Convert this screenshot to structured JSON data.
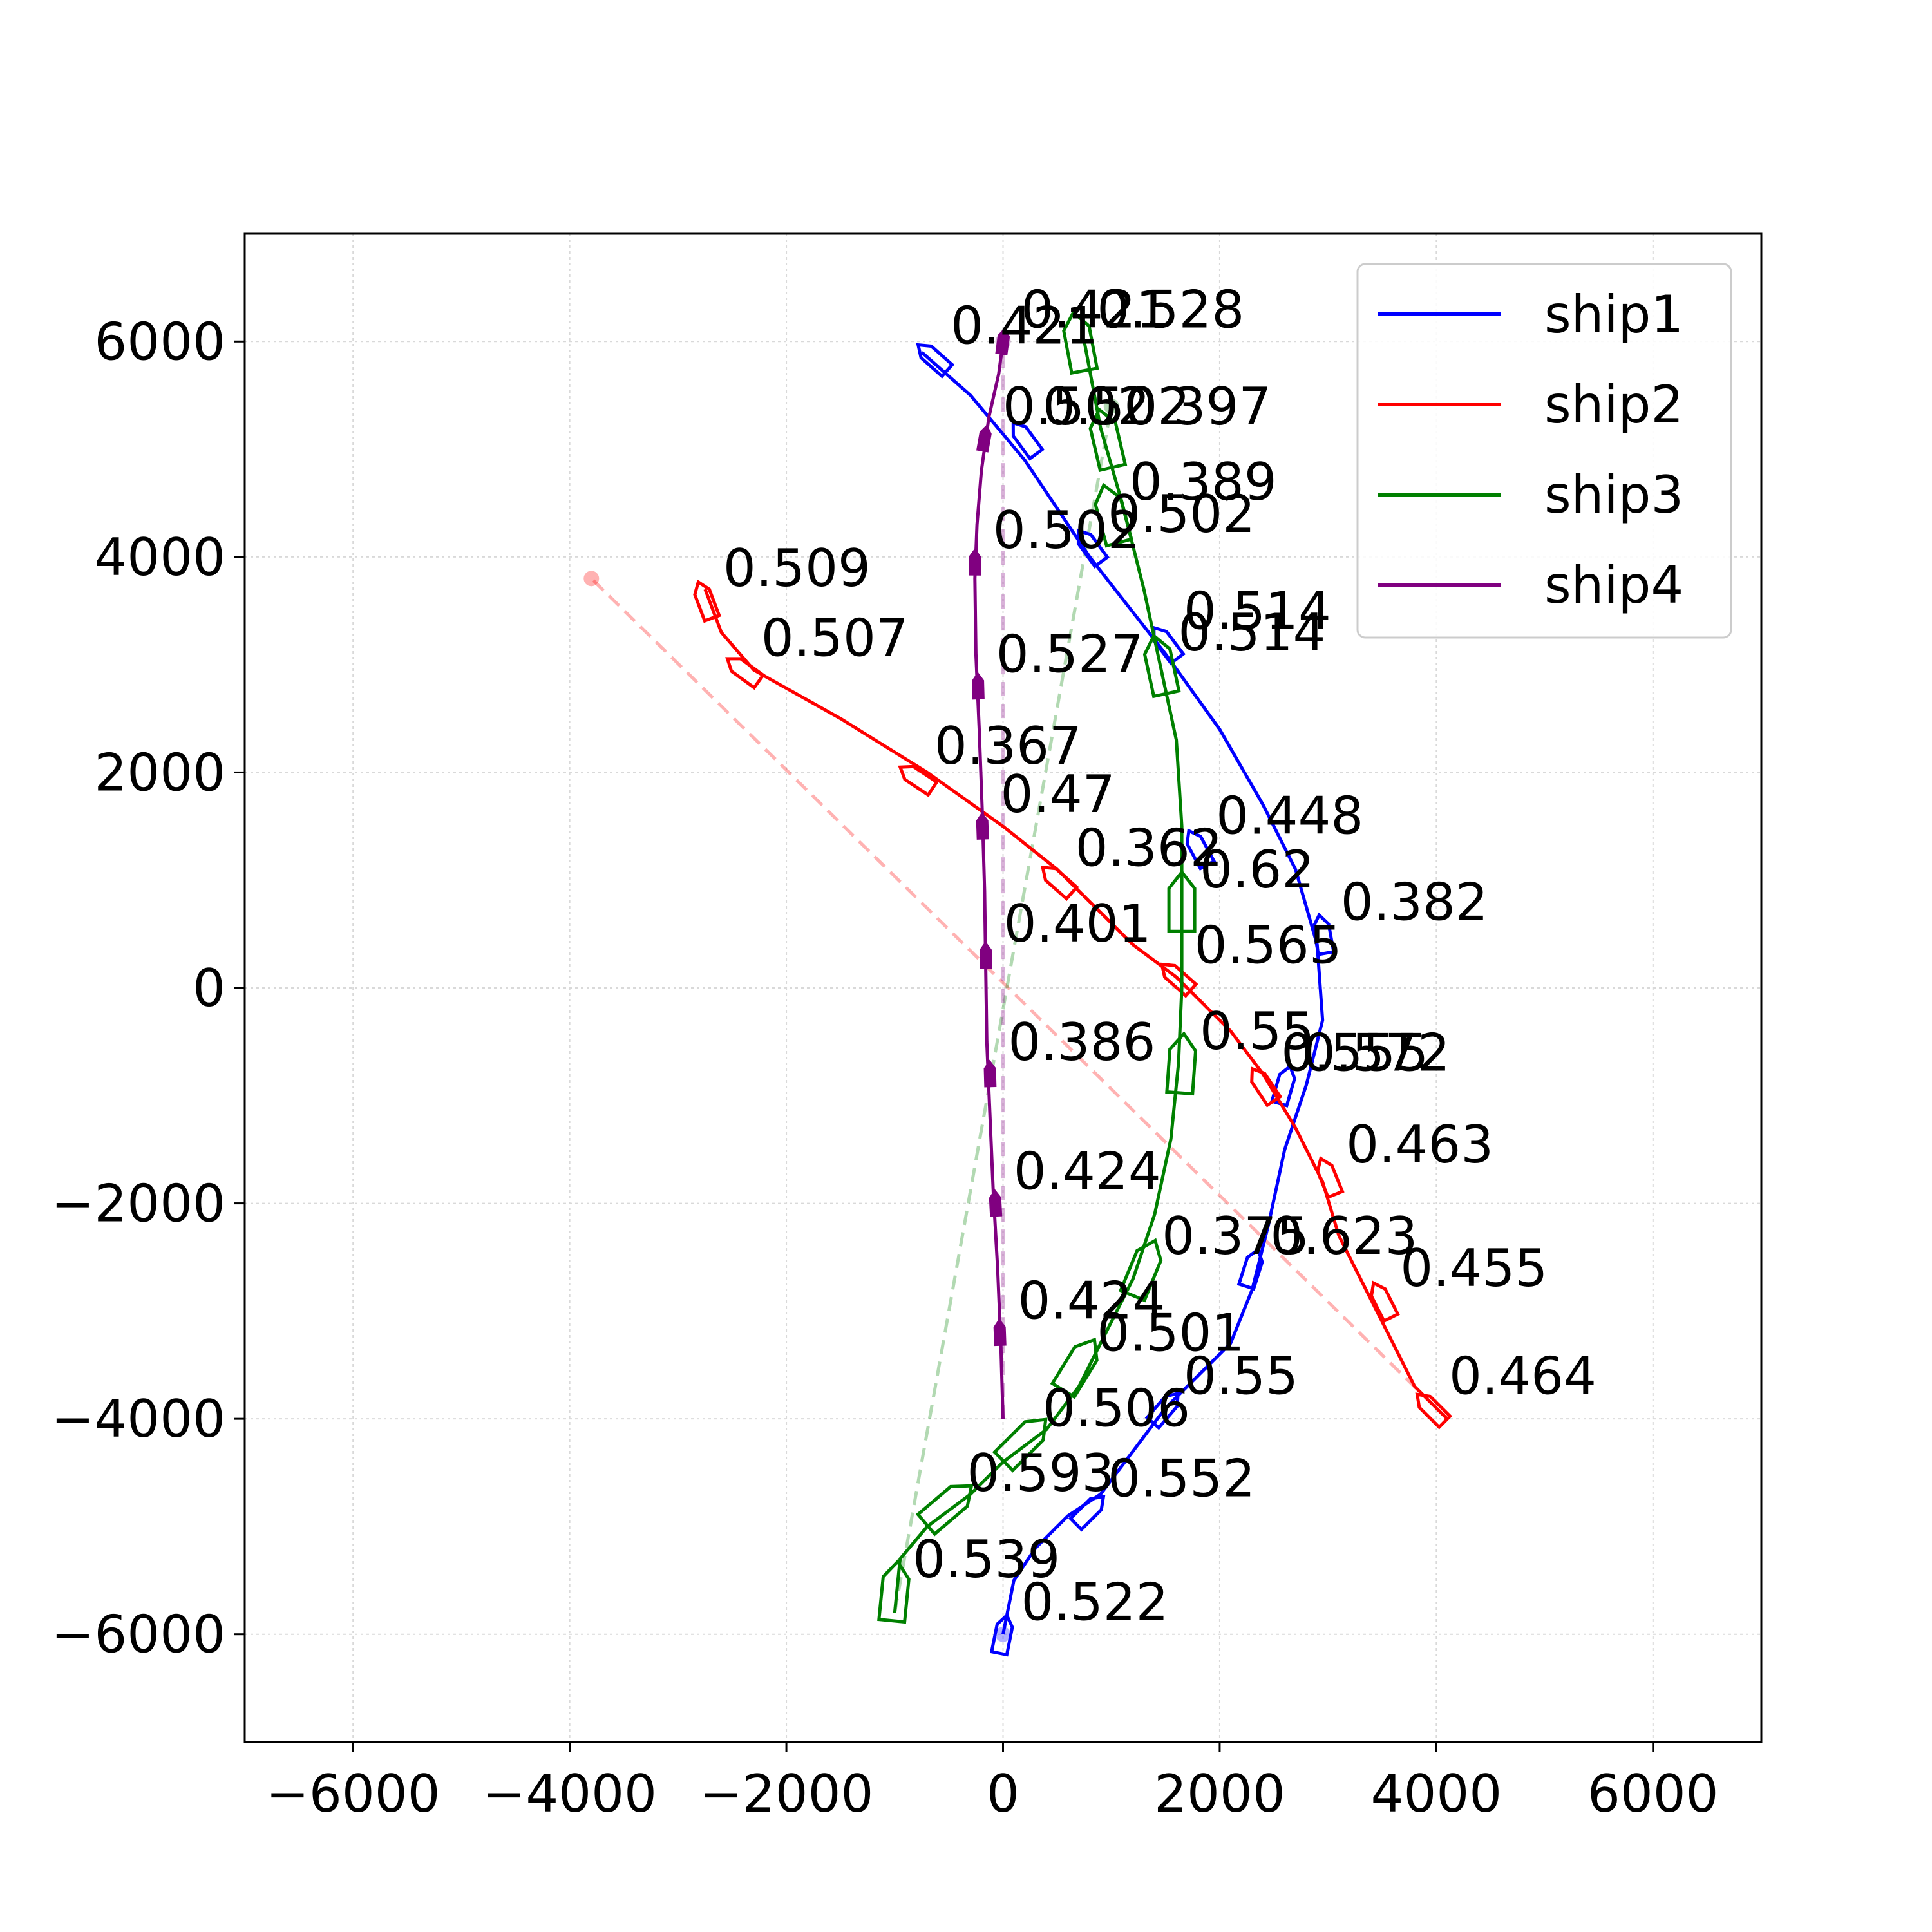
{
  "chart_data": {
    "type": "line",
    "title": "",
    "xlabel": "",
    "ylabel": "",
    "xlim": [
      -7000,
      7000
    ],
    "ylim": [
      -7000,
      7000
    ],
    "xticks": [
      -6000,
      -4000,
      -2000,
      0,
      2000,
      4000,
      6000
    ],
    "yticks": [
      -6000,
      -4000,
      -2000,
      0,
      2000,
      4000,
      6000
    ],
    "xtick_labels": [
      "−6000",
      "−4000",
      "−2000",
      "0",
      "2000",
      "4000",
      "6000"
    ],
    "ytick_labels": [
      "−6000",
      "−4000",
      "−2000",
      "0",
      "2000",
      "4000",
      "6000"
    ],
    "grid": true,
    "legend_position": "top-right",
    "series": [
      {
        "name": "ship1",
        "color": "#0000ff",
        "path": [
          [
            0,
            -6000
          ],
          [
            100,
            -5500
          ],
          [
            300,
            -5200
          ],
          [
            600,
            -4900
          ],
          [
            900,
            -4700
          ],
          [
            1200,
            -4300
          ],
          [
            1500,
            -3900
          ],
          [
            1800,
            -3600
          ],
          [
            2100,
            -3300
          ],
          [
            2300,
            -2800
          ],
          [
            2450,
            -2200
          ],
          [
            2600,
            -1500
          ],
          [
            2800,
            -900
          ],
          [
            2950,
            -300
          ],
          [
            2900,
            400
          ],
          [
            2700,
            1100
          ],
          [
            2400,
            1700
          ],
          [
            2000,
            2400
          ],
          [
            1500,
            3100
          ],
          [
            800,
            4000
          ],
          [
            200,
            4900
          ],
          [
            -300,
            5500
          ],
          [
            -750,
            5900
          ]
        ],
        "start": [
          0,
          -6000
        ],
        "target": [
          0,
          -6000
        ],
        "labels": [
          {
            "text": "0.522",
            "pos": [
              0,
              -6000
            ]
          },
          {
            "text": "0.552",
            "pos": [
              800,
              -4850
            ]
          },
          {
            "text": "0.55",
            "pos": [
              1500,
              -3900
            ]
          },
          {
            "text": "0.623",
            "pos": [
              2300,
              -2600
            ]
          },
          {
            "text": "0.572",
            "pos": [
              2600,
              -900
            ]
          },
          {
            "text": "0.382",
            "pos": [
              2950,
              500
            ]
          },
          {
            "text": "0.448",
            "pos": [
              1800,
              1300
            ]
          },
          {
            "text": "0.514",
            "pos": [
              1500,
              3200
            ]
          },
          {
            "text": "0.502",
            "pos": [
              800,
              4100
            ]
          },
          {
            "text": "0.502",
            "pos": [
              200,
              5100
            ]
          },
          {
            "text": "0.421",
            "pos": [
              -650,
              5850
            ]
          }
        ]
      },
      {
        "name": "ship2",
        "color": "#ff0000",
        "path": [
          [
            4100,
            -4000
          ],
          [
            3800,
            -3700
          ],
          [
            3550,
            -3200
          ],
          [
            3300,
            -2700
          ],
          [
            3100,
            -2300
          ],
          [
            2950,
            -1800
          ],
          [
            2700,
            -1300
          ],
          [
            2400,
            -800
          ],
          [
            2100,
            -400
          ],
          [
            1600,
            100
          ],
          [
            1200,
            400
          ],
          [
            900,
            700
          ],
          [
            500,
            1100
          ],
          [
            0,
            1500
          ],
          [
            -700,
            2000
          ],
          [
            -1500,
            2500
          ],
          [
            -2300,
            2950
          ],
          [
            -2600,
            3300
          ],
          [
            -2750,
            3700
          ]
        ],
        "start": [
          4100,
          -4000
        ],
        "target": [
          -3800,
          3800
        ],
        "labels": [
          {
            "text": "0.464",
            "pos": [
              3950,
              -3900
            ]
          },
          {
            "text": "0.455",
            "pos": [
              3500,
              -2900
            ]
          },
          {
            "text": "0.463",
            "pos": [
              3000,
              -1750
            ]
          },
          {
            "text": "0.555",
            "pos": [
              2400,
              -900
            ]
          },
          {
            "text": "0.565",
            "pos": [
              1600,
              100
            ]
          },
          {
            "text": "0.362",
            "pos": [
              500,
              1000
            ]
          },
          {
            "text": "0.367",
            "pos": [
              -800,
              1950
            ]
          },
          {
            "text": "0.507",
            "pos": [
              -2400,
              2950
            ]
          },
          {
            "text": "0.509",
            "pos": [
              -2750,
              3600
            ]
          }
        ]
      },
      {
        "name": "ship3",
        "color": "#008000",
        "path": [
          [
            -1000,
            -5800
          ],
          [
            -950,
            -5300
          ],
          [
            -700,
            -5000
          ],
          [
            -300,
            -4700
          ],
          [
            0,
            -4400
          ],
          [
            400,
            -4100
          ],
          [
            700,
            -3700
          ],
          [
            950,
            -3200
          ],
          [
            1200,
            -2700
          ],
          [
            1400,
            -2100
          ],
          [
            1550,
            -1400
          ],
          [
            1620,
            -700
          ],
          [
            1650,
            0
          ],
          [
            1650,
            700
          ],
          [
            1650,
            1500
          ],
          [
            1600,
            2300
          ],
          [
            1450,
            3000
          ],
          [
            1300,
            3700
          ],
          [
            1100,
            4500
          ],
          [
            900,
            5200
          ],
          [
            750,
            6000
          ]
        ],
        "start": [
          -1000,
          -5800
        ],
        "target": [
          1000,
          5400
        ],
        "labels": [
          {
            "text": "0.539",
            "pos": [
              -1000,
              -5600
            ]
          },
          {
            "text": "0.593",
            "pos": [
              -500,
              -4800
            ]
          },
          {
            "text": "0.506",
            "pos": [
              200,
              -4200
            ]
          },
          {
            "text": "0.501",
            "pos": [
              700,
              -3500
            ]
          },
          {
            "text": "0.375",
            "pos": [
              1300,
              -2600
            ]
          },
          {
            "text": "0.55",
            "pos": [
              1650,
              -700
            ]
          },
          {
            "text": "0.62",
            "pos": [
              1650,
              800
            ]
          },
          {
            "text": "0.514",
            "pos": [
              1450,
              3000
            ]
          },
          {
            "text": "0.389",
            "pos": [
              1000,
              4400
            ]
          },
          {
            "text": "0.397",
            "pos": [
              950,
              5100
            ]
          },
          {
            "text": "0.528",
            "pos": [
              700,
              6000
            ]
          }
        ]
      },
      {
        "name": "ship4",
        "color": "#800080",
        "path": [
          [
            0,
            -4000
          ],
          [
            -20,
            -3300
          ],
          [
            -50,
            -2600
          ],
          [
            -90,
            -1900
          ],
          [
            -120,
            -1200
          ],
          [
            -150,
            -500
          ],
          [
            -160,
            200
          ],
          [
            -170,
            900
          ],
          [
            -190,
            1600
          ],
          [
            -220,
            2400
          ],
          [
            -250,
            3100
          ],
          [
            -260,
            3800
          ],
          [
            -240,
            4300
          ],
          [
            -200,
            4800
          ],
          [
            -130,
            5300
          ],
          [
            -40,
            5700
          ],
          [
            0,
            6000
          ]
        ],
        "start": [
          0,
          -4000
        ],
        "target": [
          0,
          6000
        ],
        "labels": [
          {
            "text": "0.424",
            "pos": [
              -30,
              -3200
            ]
          },
          {
            "text": "0.424",
            "pos": [
              -70,
              -2000
            ]
          },
          {
            "text": "0.386",
            "pos": [
              -120,
              -800
            ]
          },
          {
            "text": "0.401",
            "pos": [
              -160,
              300
            ]
          },
          {
            "text": "0.47",
            "pos": [
              -190,
              1500
            ]
          },
          {
            "text": "0.527",
            "pos": [
              -230,
              2800
            ]
          },
          {
            "text": "0.502",
            "pos": [
              -260,
              3950
            ]
          },
          {
            "text": "0.502",
            "pos": [
              -170,
              5100
            ]
          },
          {
            "text": "0.421",
            "pos": [
              0,
              6000
            ]
          }
        ]
      }
    ]
  }
}
